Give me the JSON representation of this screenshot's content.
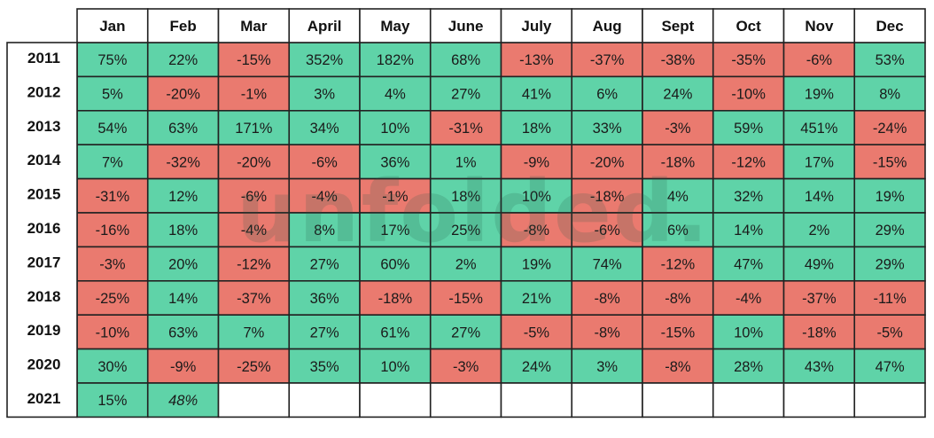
{
  "chart_data": {
    "type": "heatmap",
    "columns": [
      "Jan",
      "Feb",
      "Mar",
      "April",
      "May",
      "June",
      "July",
      "Aug",
      "Sept",
      "Oct",
      "Nov",
      "Dec"
    ],
    "rows": [
      "2011",
      "2012",
      "2013",
      "2014",
      "2015",
      "2016",
      "2017",
      "2018",
      "2019",
      "2020",
      "2021"
    ],
    "unit": "%",
    "values": [
      [
        75,
        22,
        -15,
        352,
        182,
        68,
        -13,
        -37,
        -38,
        -35,
        -6,
        53
      ],
      [
        5,
        -20,
        -1,
        3,
        4,
        27,
        41,
        6,
        24,
        -10,
        19,
        8
      ],
      [
        54,
        63,
        171,
        34,
        10,
        -31,
        18,
        33,
        -3,
        59,
        451,
        -24
      ],
      [
        7,
        -32,
        -20,
        -6,
        36,
        1,
        -9,
        -20,
        -18,
        -12,
        17,
        -15
      ],
      [
        -31,
        12,
        -6,
        -4,
        -1,
        18,
        10,
        -18,
        4,
        32,
        14,
        19
      ],
      [
        -16,
        18,
        -4,
        8,
        17,
        25,
        -8,
        -6,
        6,
        14,
        2,
        29
      ],
      [
        -3,
        20,
        -12,
        27,
        60,
        2,
        19,
        74,
        -12,
        47,
        49,
        29
      ],
      [
        -25,
        14,
        -37,
        36,
        -18,
        -15,
        21,
        -8,
        -8,
        -4,
        -37,
        -11
      ],
      [
        -10,
        63,
        7,
        27,
        61,
        27,
        -5,
        -8,
        -15,
        10,
        -18,
        -5
      ],
      [
        30,
        -9,
        -25,
        35,
        10,
        -3,
        24,
        3,
        -8,
        28,
        43,
        47
      ],
      [
        15,
        48,
        null,
        null,
        null,
        null,
        null,
        null,
        null,
        null,
        null,
        null
      ]
    ],
    "italic_cells": [
      [
        10,
        1
      ]
    ],
    "colors": {
      "positive": "#5fd3a8",
      "negative": "#ea7a6f",
      "empty": "#ffffff"
    }
  },
  "watermark": {
    "text": "unfolded."
  }
}
